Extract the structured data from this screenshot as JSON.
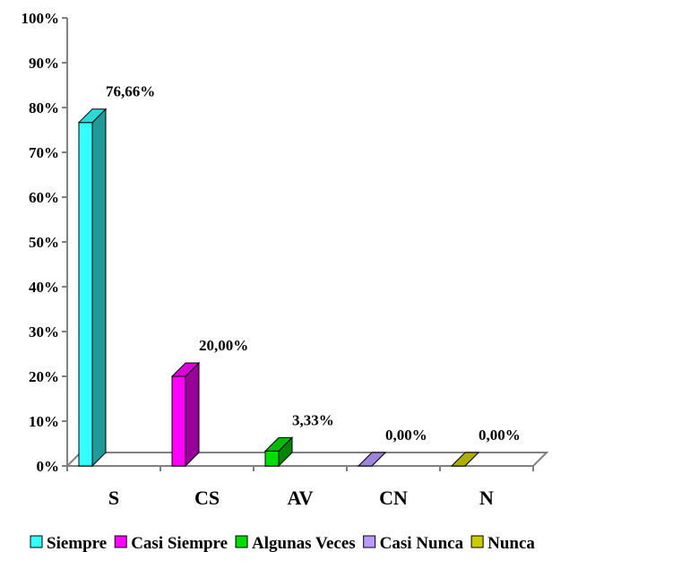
{
  "chart_data": {
    "type": "bar",
    "style": "3d-column",
    "categories": [
      "S",
      "CS",
      "AV",
      "CN",
      "N"
    ],
    "values": [
      76.66,
      20.0,
      3.33,
      0.0,
      0.0
    ],
    "value_labels": [
      "76,66%",
      "20,00%",
      "3,33%",
      "0,00%",
      "0,00%"
    ],
    "series_names": [
      "Siempre",
      "Casi Siempre",
      "Algunas Veces",
      "Casi Nunca",
      "Nunca"
    ],
    "colors": [
      "#33ffff",
      "#ff00ff",
      "#00dd00",
      "#bb99ff",
      "#cccc00"
    ],
    "ylim": [
      0,
      100
    ],
    "yticks": [
      0,
      10,
      20,
      30,
      40,
      50,
      60,
      70,
      80,
      90,
      100
    ],
    "ytick_labels": [
      "0%",
      "10%",
      "20%",
      "30%",
      "40%",
      "50%",
      "60%",
      "70%",
      "80%",
      "90%",
      "100%"
    ],
    "title": "",
    "xlabel": "",
    "ylabel": "",
    "grid": false,
    "legend_position": "bottom"
  }
}
